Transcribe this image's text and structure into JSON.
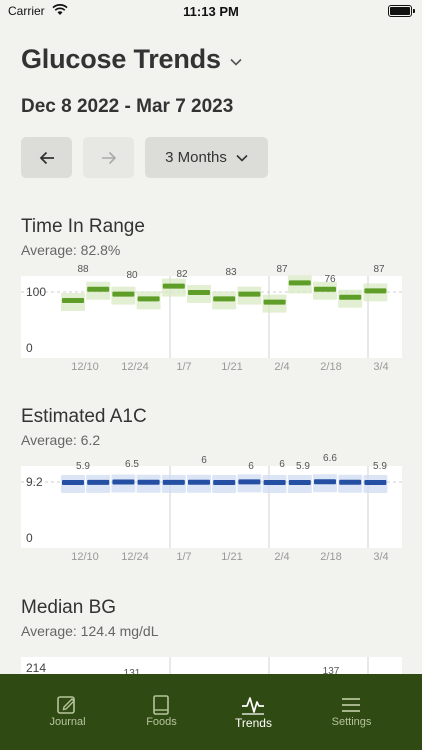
{
  "status_bar": {
    "carrier": "Carrier",
    "time": "11:13 PM"
  },
  "header": {
    "title": "Glucose Trends",
    "date_range": "Dec 8 2022 - Mar 7 2023"
  },
  "controls": {
    "range_label": "3 Months"
  },
  "sections": [
    {
      "title": "Time In Range",
      "average": "Average: 82.8%",
      "chart_data": {
        "type": "bar",
        "y_ticks": [
          "100",
          "0"
        ],
        "x_ticks": [
          "12/10",
          "12/24",
          "1/7",
          "1/21",
          "2/4",
          "2/18",
          "3/4"
        ],
        "weekly_labels": [
          "88",
          "80",
          "82",
          "83",
          "87",
          "76",
          "87"
        ],
        "bars": [
          92,
          99,
          96,
          93,
          101,
          97,
          93,
          96,
          91,
          103,
          99,
          94,
          98
        ],
        "color": "#5e9e28",
        "band_color": "#d9e9c4"
      }
    },
    {
      "title": "Estimated A1C",
      "average": "Average: 6.2",
      "chart_data": {
        "type": "bar",
        "y_ticks": [
          "9.2",
          "0"
        ],
        "x_ticks": [
          "12/10",
          "12/24",
          "1/7",
          "1/21",
          "2/4",
          "2/18",
          "3/4"
        ],
        "weekly_labels": [
          "5.9",
          "6",
          "6.5",
          "6",
          "6",
          "5.9",
          "6.6",
          "5.9"
        ],
        "bars": [
          5.9,
          6.0,
          6.2,
          6.1,
          6.0,
          6.1,
          5.9,
          6.3,
          5.9,
          5.9,
          6.4,
          6.1,
          5.9
        ],
        "color": "#244fa3",
        "band_color": "#cfdcf2"
      }
    },
    {
      "title": "Median BG",
      "average": "Average: 124.4 mg/dL",
      "chart_data": {
        "type": "bar",
        "y_ticks": [
          "214"
        ],
        "weekly_labels": [
          "131",
          "137"
        ]
      }
    }
  ],
  "tabs": [
    {
      "label": "Journal",
      "icon": "pencil-square-icon",
      "active": false
    },
    {
      "label": "Foods",
      "icon": "book-icon",
      "active": false
    },
    {
      "label": "Trends",
      "icon": "pulse-chart-icon",
      "active": true
    },
    {
      "label": "Settings",
      "icon": "menu-lines-icon",
      "active": false
    }
  ]
}
